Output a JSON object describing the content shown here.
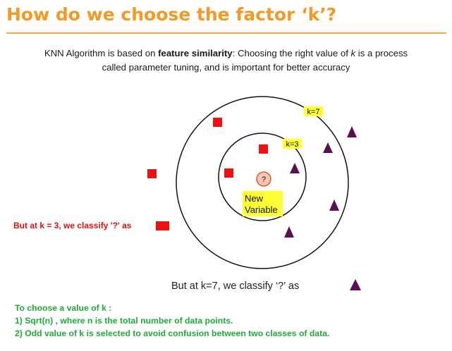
{
  "colors": {
    "title": "#f29a26",
    "rule": "#f5a64f",
    "class_square": "#ee1111",
    "class_triangle": "#5a0f55",
    "highlight": "#ffff33",
    "query_fill": "#f7c6b3",
    "query_stroke": "#e25a3a",
    "k3_sentence": "#dd1111",
    "tips": "#22a83a"
  },
  "title": "How do we choose the factor ‘k’?",
  "intro": {
    "prefix": "KNN Algorithm is based on ",
    "bold": "feature similarity",
    "mid": ": Choosing the right value of ",
    "k": "k",
    "rest": " is a process",
    "line2": "called parameter tuning, and is important for better accuracy"
  },
  "diagram": {
    "outer_label": "k=7",
    "inner_label": "k=3",
    "query_symbol": "?",
    "query_label_1": "New",
    "query_label_2": "Variable",
    "squares": 5,
    "triangles": 6
  },
  "k3_sentence": "But at k = 3, we classify '?' as",
  "k7_sentence": "But at k=7, we classify ‘?’ as",
  "tips": {
    "heading": "To choose a value of k :",
    "item1": "1) Sqrt(n) , where n is the total number of data points.",
    "item2": "2) Odd value of k is selected to avoid confusion between two classes   of data."
  }
}
